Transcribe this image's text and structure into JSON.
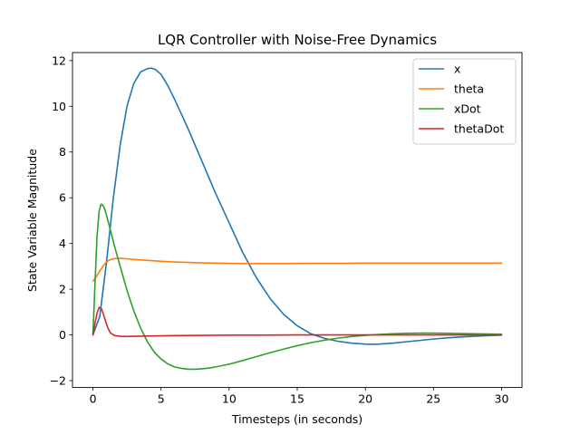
{
  "chart_data": {
    "type": "line",
    "title": "LQR Controller with Noise-Free Dynamics",
    "xlabel": "Timesteps (in seconds)",
    "ylabel": "State Variable Magnitude",
    "xlim": [
      -1.5,
      31.5
    ],
    "ylim": [
      -2.3,
      12.35
    ],
    "xticks": [
      0,
      5,
      10,
      15,
      20,
      25,
      30
    ],
    "yticks": [
      -2,
      0,
      2,
      4,
      6,
      8,
      10,
      12
    ],
    "grid": false,
    "legend_position": "top-right",
    "series": [
      {
        "name": "x",
        "color": "#1f77b4",
        "x": [
          0,
          0.5,
          1,
          1.5,
          2,
          2.5,
          3,
          3.5,
          4,
          4.3,
          4.6,
          5,
          5.5,
          6,
          7,
          8,
          9,
          10,
          11,
          12,
          13,
          14,
          15,
          16,
          17,
          18,
          19,
          20,
          20.5,
          21,
          22,
          23,
          24,
          25,
          26,
          27,
          28,
          29,
          30
        ],
        "y": [
          0,
          0.8,
          3.2,
          6.0,
          8.3,
          10.0,
          11.0,
          11.5,
          11.65,
          11.67,
          11.6,
          11.4,
          10.9,
          10.3,
          9.0,
          7.6,
          6.2,
          4.9,
          3.6,
          2.5,
          1.6,
          0.9,
          0.4,
          0.05,
          -0.15,
          -0.28,
          -0.36,
          -0.4,
          -0.41,
          -0.4,
          -0.36,
          -0.3,
          -0.24,
          -0.18,
          -0.13,
          -0.09,
          -0.06,
          -0.03,
          -0.01
        ]
      },
      {
        "name": "theta",
        "color": "#ff7f0e",
        "x": [
          0,
          0.2,
          0.5,
          0.8,
          1,
          1.3,
          1.6,
          2,
          2.5,
          3,
          4,
          5,
          6,
          7,
          8,
          9,
          10,
          11,
          12,
          14,
          16,
          18,
          20,
          22,
          24,
          26,
          28,
          30
        ],
        "y": [
          2.35,
          2.5,
          2.8,
          3.05,
          3.2,
          3.3,
          3.34,
          3.35,
          3.33,
          3.3,
          3.26,
          3.22,
          3.19,
          3.17,
          3.15,
          3.14,
          3.13,
          3.12,
          3.12,
          3.12,
          3.13,
          3.13,
          3.14,
          3.14,
          3.14,
          3.14,
          3.14,
          3.14
        ]
      },
      {
        "name": "xDot",
        "color": "#2ca02c",
        "x": [
          0,
          0.15,
          0.3,
          0.45,
          0.6,
          0.75,
          0.9,
          1.1,
          1.3,
          1.6,
          2,
          2.5,
          3,
          3.5,
          4,
          4.5,
          5,
          5.5,
          6,
          6.5,
          7,
          7.5,
          8,
          8.5,
          9,
          10,
          11,
          12,
          13,
          14,
          15,
          16,
          17,
          18,
          19,
          20,
          21,
          22,
          23,
          24,
          25,
          26,
          27,
          28,
          29,
          30
        ],
        "y": [
          0,
          2.2,
          4.3,
          5.4,
          5.72,
          5.65,
          5.45,
          5.0,
          4.55,
          3.85,
          3.0,
          1.95,
          1.05,
          0.3,
          -0.3,
          -0.75,
          -1.05,
          -1.27,
          -1.4,
          -1.46,
          -1.5,
          -1.5,
          -1.48,
          -1.45,
          -1.4,
          -1.28,
          -1.12,
          -0.95,
          -0.78,
          -0.62,
          -0.47,
          -0.34,
          -0.23,
          -0.14,
          -0.07,
          -0.02,
          0.02,
          0.05,
          0.07,
          0.08,
          0.08,
          0.07,
          0.06,
          0.05,
          0.04,
          0.03
        ]
      },
      {
        "name": "thetaDot",
        "color": "#d62728",
        "x": [
          0,
          0.15,
          0.3,
          0.45,
          0.6,
          0.75,
          0.9,
          1.1,
          1.3,
          1.6,
          2,
          2.5,
          3,
          4,
          5,
          6,
          8,
          10,
          12,
          15,
          18,
          20,
          22,
          25,
          28,
          30
        ],
        "y": [
          0,
          0.5,
          0.95,
          1.2,
          1.18,
          0.95,
          0.65,
          0.3,
          0.08,
          -0.03,
          -0.06,
          -0.07,
          -0.06,
          -0.05,
          -0.04,
          -0.03,
          -0.02,
          -0.01,
          -0.01,
          0.0,
          0.0,
          0.0,
          0.0,
          0.0,
          0.0,
          0.0
        ]
      }
    ]
  }
}
